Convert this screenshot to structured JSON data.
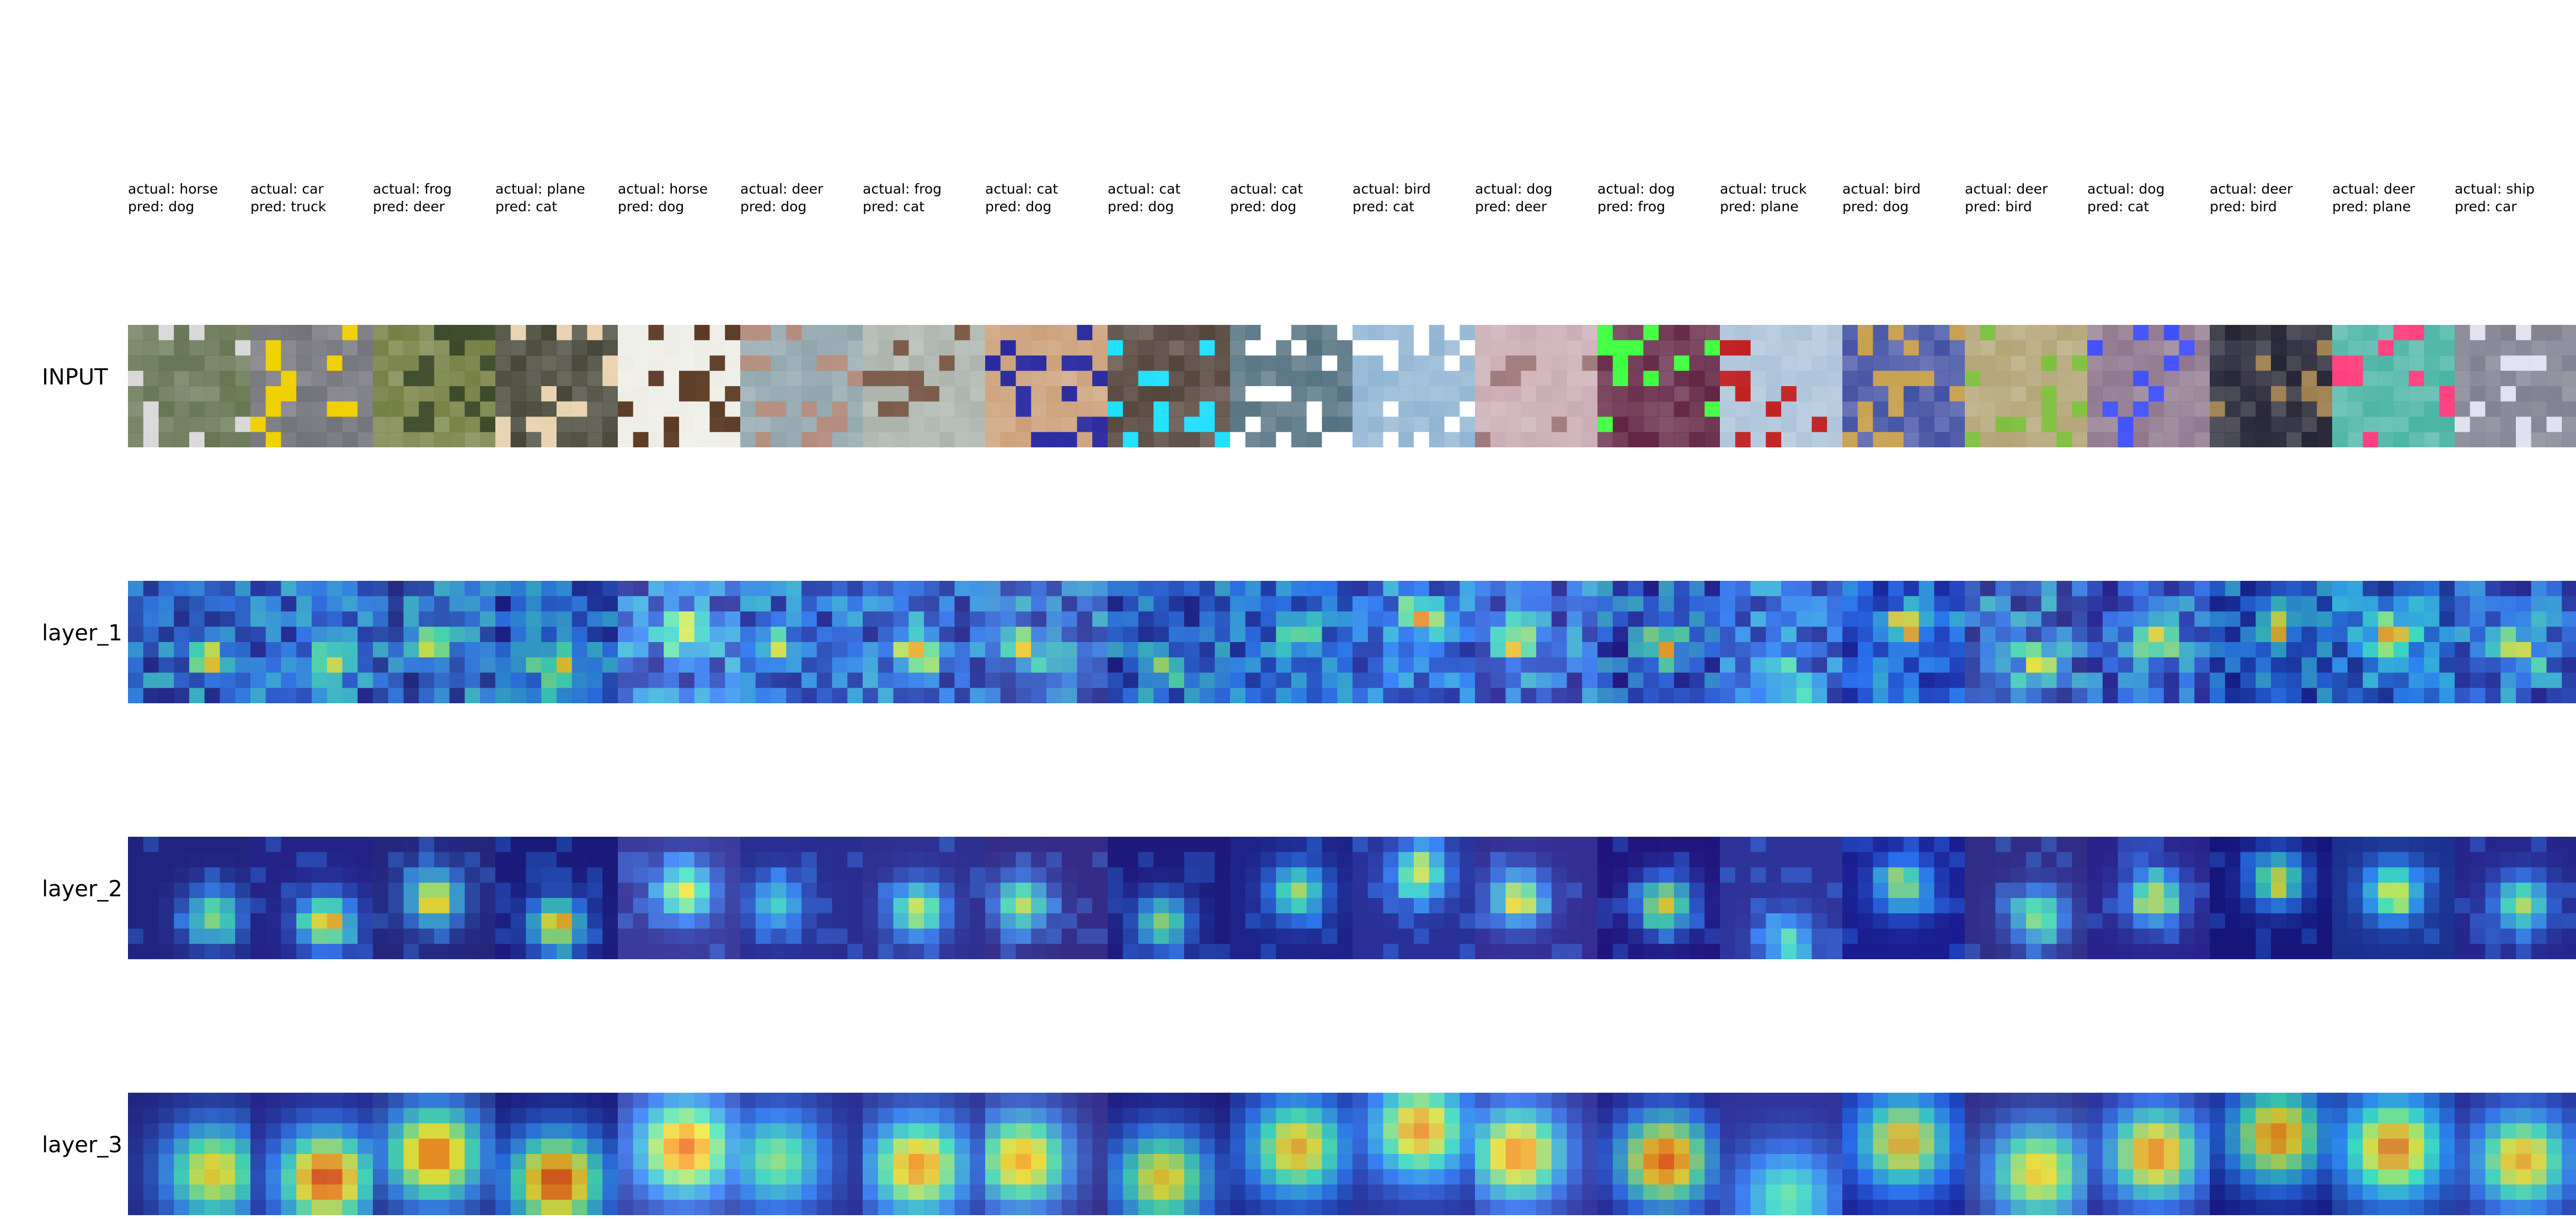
{
  "row_labels": [
    "INPUT",
    "layer_1",
    "layer_2",
    "layer_3"
  ],
  "samples": [
    {
      "actual": "actual: horse",
      "pred": "pred: dog",
      "base": "#5f6f4a",
      "accent": "#d8d8d8",
      "hot": [
        [
          0.7,
          0.65,
          0.75
        ]
      ]
    },
    {
      "actual": "actual: car",
      "pred": "pred: truck",
      "base": "#6b6b73",
      "accent": "#f0d000",
      "hot": [
        [
          0.62,
          0.7,
          0.95
        ]
      ]
    },
    {
      "actual": "actual: frog",
      "pred": "pred: deer",
      "base": "#6f7a3a",
      "accent": "#3b4a2a",
      "hot": [
        [
          0.5,
          0.5,
          0.9
        ]
      ]
    },
    {
      "actual": "actual: plane",
      "pred": "pred: cat",
      "base": "#3a3a2a",
      "accent": "#e8d2b0",
      "hot": [
        [
          0.5,
          0.72,
          0.95
        ]
      ]
    },
    {
      "actual": "actual: horse",
      "pred": "pred: dog",
      "base": "#ecece4",
      "accent": "#5a3a24",
      "hot": [
        [
          0.55,
          0.45,
          0.9
        ]
      ]
    },
    {
      "actual": "actual: deer",
      "pred": "pred: dog",
      "base": "#8aa0a8",
      "accent": "#b48c7c",
      "hot": [
        [
          0.3,
          0.55,
          0.6
        ]
      ]
    },
    {
      "actual": "actual: frog",
      "pred": "pred: cat",
      "base": "#a8b0a8",
      "accent": "#7a5a48",
      "hot": [
        [
          0.45,
          0.6,
          0.85
        ]
      ]
    },
    {
      "actual": "actual: cat",
      "pred": "pred: dog",
      "base": "#c89a70",
      "accent": "#2a2aa0",
      "hot": [
        [
          0.3,
          0.55,
          0.8
        ]
      ]
    },
    {
      "actual": "actual: cat",
      "pred": "pred: dog",
      "base": "#4a3a30",
      "accent": "#20e0ff",
      "hot": [
        [
          0.45,
          0.7,
          0.75
        ]
      ]
    },
    {
      "actual": "actual: cat",
      "pred": "pred: dog",
      "base": "#4a6a7a",
      "accent": "#ffffff",
      "hot": [
        [
          0.55,
          0.45,
          0.8
        ]
      ]
    },
    {
      "actual": "actual: bird",
      "pred": "pred: cat",
      "base": "#8ab0d0",
      "accent": "#ffffff",
      "hot": [
        [
          0.55,
          0.3,
          0.85
        ]
      ]
    },
    {
      "actual": "actual: dog",
      "pred": "pred: deer",
      "base": "#c8a8b0",
      "accent": "#a07a7a",
      "hot": [
        [
          0.35,
          0.5,
          0.85
        ]
      ]
    },
    {
      "actual": "actual: dog",
      "pred": "pred: frog",
      "base": "#5a1a3a",
      "accent": "#40ff40",
      "hot": [
        [
          0.55,
          0.55,
          0.9
        ]
      ]
    },
    {
      "actual": "actual: truck",
      "pred": "pred: plane",
      "base": "#a8c0d8",
      "accent": "#c02020",
      "hot": [
        [
          0.55,
          0.85,
          0.55
        ]
      ]
    },
    {
      "actual": "actual: bird",
      "pred": "pred: dog",
      "base": "#3a4aa0",
      "accent": "#c8a050",
      "hot": [
        [
          0.5,
          0.4,
          0.8
        ]
      ]
    },
    {
      "actual": "actual: deer",
      "pred": "pred: bird",
      "base": "#b0a070",
      "accent": "#80c040",
      "hot": [
        [
          0.6,
          0.65,
          0.75
        ]
      ]
    },
    {
      "actual": "actual: dog",
      "pred": "pred: cat",
      "base": "#8a7088",
      "accent": "#4050ff",
      "hot": [
        [
          0.55,
          0.5,
          0.85
        ]
      ]
    },
    {
      "actual": "actual: deer",
      "pred": "pred: bird",
      "base": "#1a1a2a",
      "accent": "#a08050",
      "hot": [
        [
          0.55,
          0.35,
          0.85
        ]
      ]
    },
    {
      "actual": "actual: deer",
      "pred": "pred: plane",
      "base": "#40b0a0",
      "accent": "#ff4080",
      "hot": [
        [
          0.5,
          0.45,
          0.9
        ]
      ]
    },
    {
      "actual": "actual: ship",
      "pred": "pred: car",
      "base": "#7a7a8a",
      "accent": "#e0e0f0",
      "hot": [
        [
          0.55,
          0.55,
          0.8
        ]
      ]
    }
  ]
}
